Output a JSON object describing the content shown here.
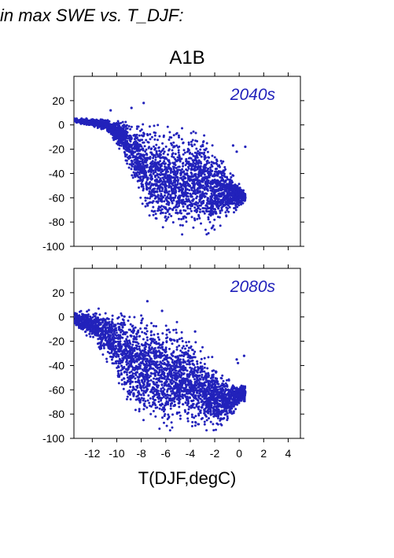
{
  "heading": "in max SWE vs. T_DJF:",
  "chart_data": {
    "type": "scatter",
    "title": "A1B",
    "xlabel": "T(DJF,degC)",
    "ylabel": "",
    "xlim": [
      -13.5,
      5
    ],
    "ylim": [
      -100,
      40
    ],
    "xticks": [
      -12,
      -10,
      -8,
      -6,
      -4,
      -2,
      0,
      2,
      4
    ],
    "yticks": [
      20,
      0,
      -20,
      -40,
      -60,
      -80,
      -100
    ],
    "grid": false,
    "marker_color": "#2222bb",
    "panels": [
      {
        "label": "2040s",
        "cloud": {
          "n": 3000,
          "x_range": [
            -13.5,
            0.5
          ],
          "upper_envelope": [
            [
              -13.5,
              6
            ],
            [
              -11,
              6
            ],
            [
              -8,
              7
            ],
            [
              -6,
              6
            ],
            [
              -4.5,
              5
            ],
            [
              -3,
              3
            ],
            [
              -2,
              -15
            ],
            [
              -1,
              -30
            ],
            [
              0.5,
              -55
            ]
          ],
          "lower_envelope": [
            [
              -13.5,
              2
            ],
            [
              -11,
              -5
            ],
            [
              -9.5,
              -25
            ],
            [
              -8,
              -70
            ],
            [
              -7,
              -90
            ],
            [
              -6,
              -95
            ],
            [
              -4,
              -96
            ],
            [
              -2,
              -92
            ],
            [
              -1,
              -80
            ],
            [
              0.5,
              -65
            ]
          ]
        },
        "outliers": [
          [
            -7.8,
            18
          ],
          [
            -8.8,
            14
          ],
          [
            -10.5,
            12
          ],
          [
            -0.2,
            -22
          ],
          [
            0.5,
            -18
          ],
          [
            -0.5,
            -17
          ]
        ]
      },
      {
        "label": "2080s",
        "cloud": {
          "n": 3000,
          "x_range": [
            -13.5,
            0.5
          ],
          "upper_envelope": [
            [
              -13.5,
              5
            ],
            [
              -12,
              8
            ],
            [
              -10,
              10
            ],
            [
              -8,
              12
            ],
            [
              -6.5,
              8
            ],
            [
              -5,
              0
            ],
            [
              -3.5,
              -15
            ],
            [
              -2,
              -35
            ],
            [
              -1,
              -48
            ],
            [
              0.5,
              -55
            ]
          ],
          "lower_envelope": [
            [
              -13.5,
              -8
            ],
            [
              -12,
              -20
            ],
            [
              -10,
              -55
            ],
            [
              -8.5,
              -90
            ],
            [
              -7,
              -98
            ],
            [
              -6,
              -100
            ],
            [
              -4,
              -100
            ],
            [
              -2,
              -99
            ],
            [
              -1,
              -90
            ],
            [
              0.5,
              -70
            ]
          ]
        },
        "outliers": [
          [
            -7.5,
            13
          ],
          [
            -6.3,
            5
          ],
          [
            -3.6,
            -12
          ],
          [
            -0.1,
            -38
          ],
          [
            0.4,
            -32
          ],
          [
            -0.2,
            -35
          ]
        ]
      }
    ]
  }
}
